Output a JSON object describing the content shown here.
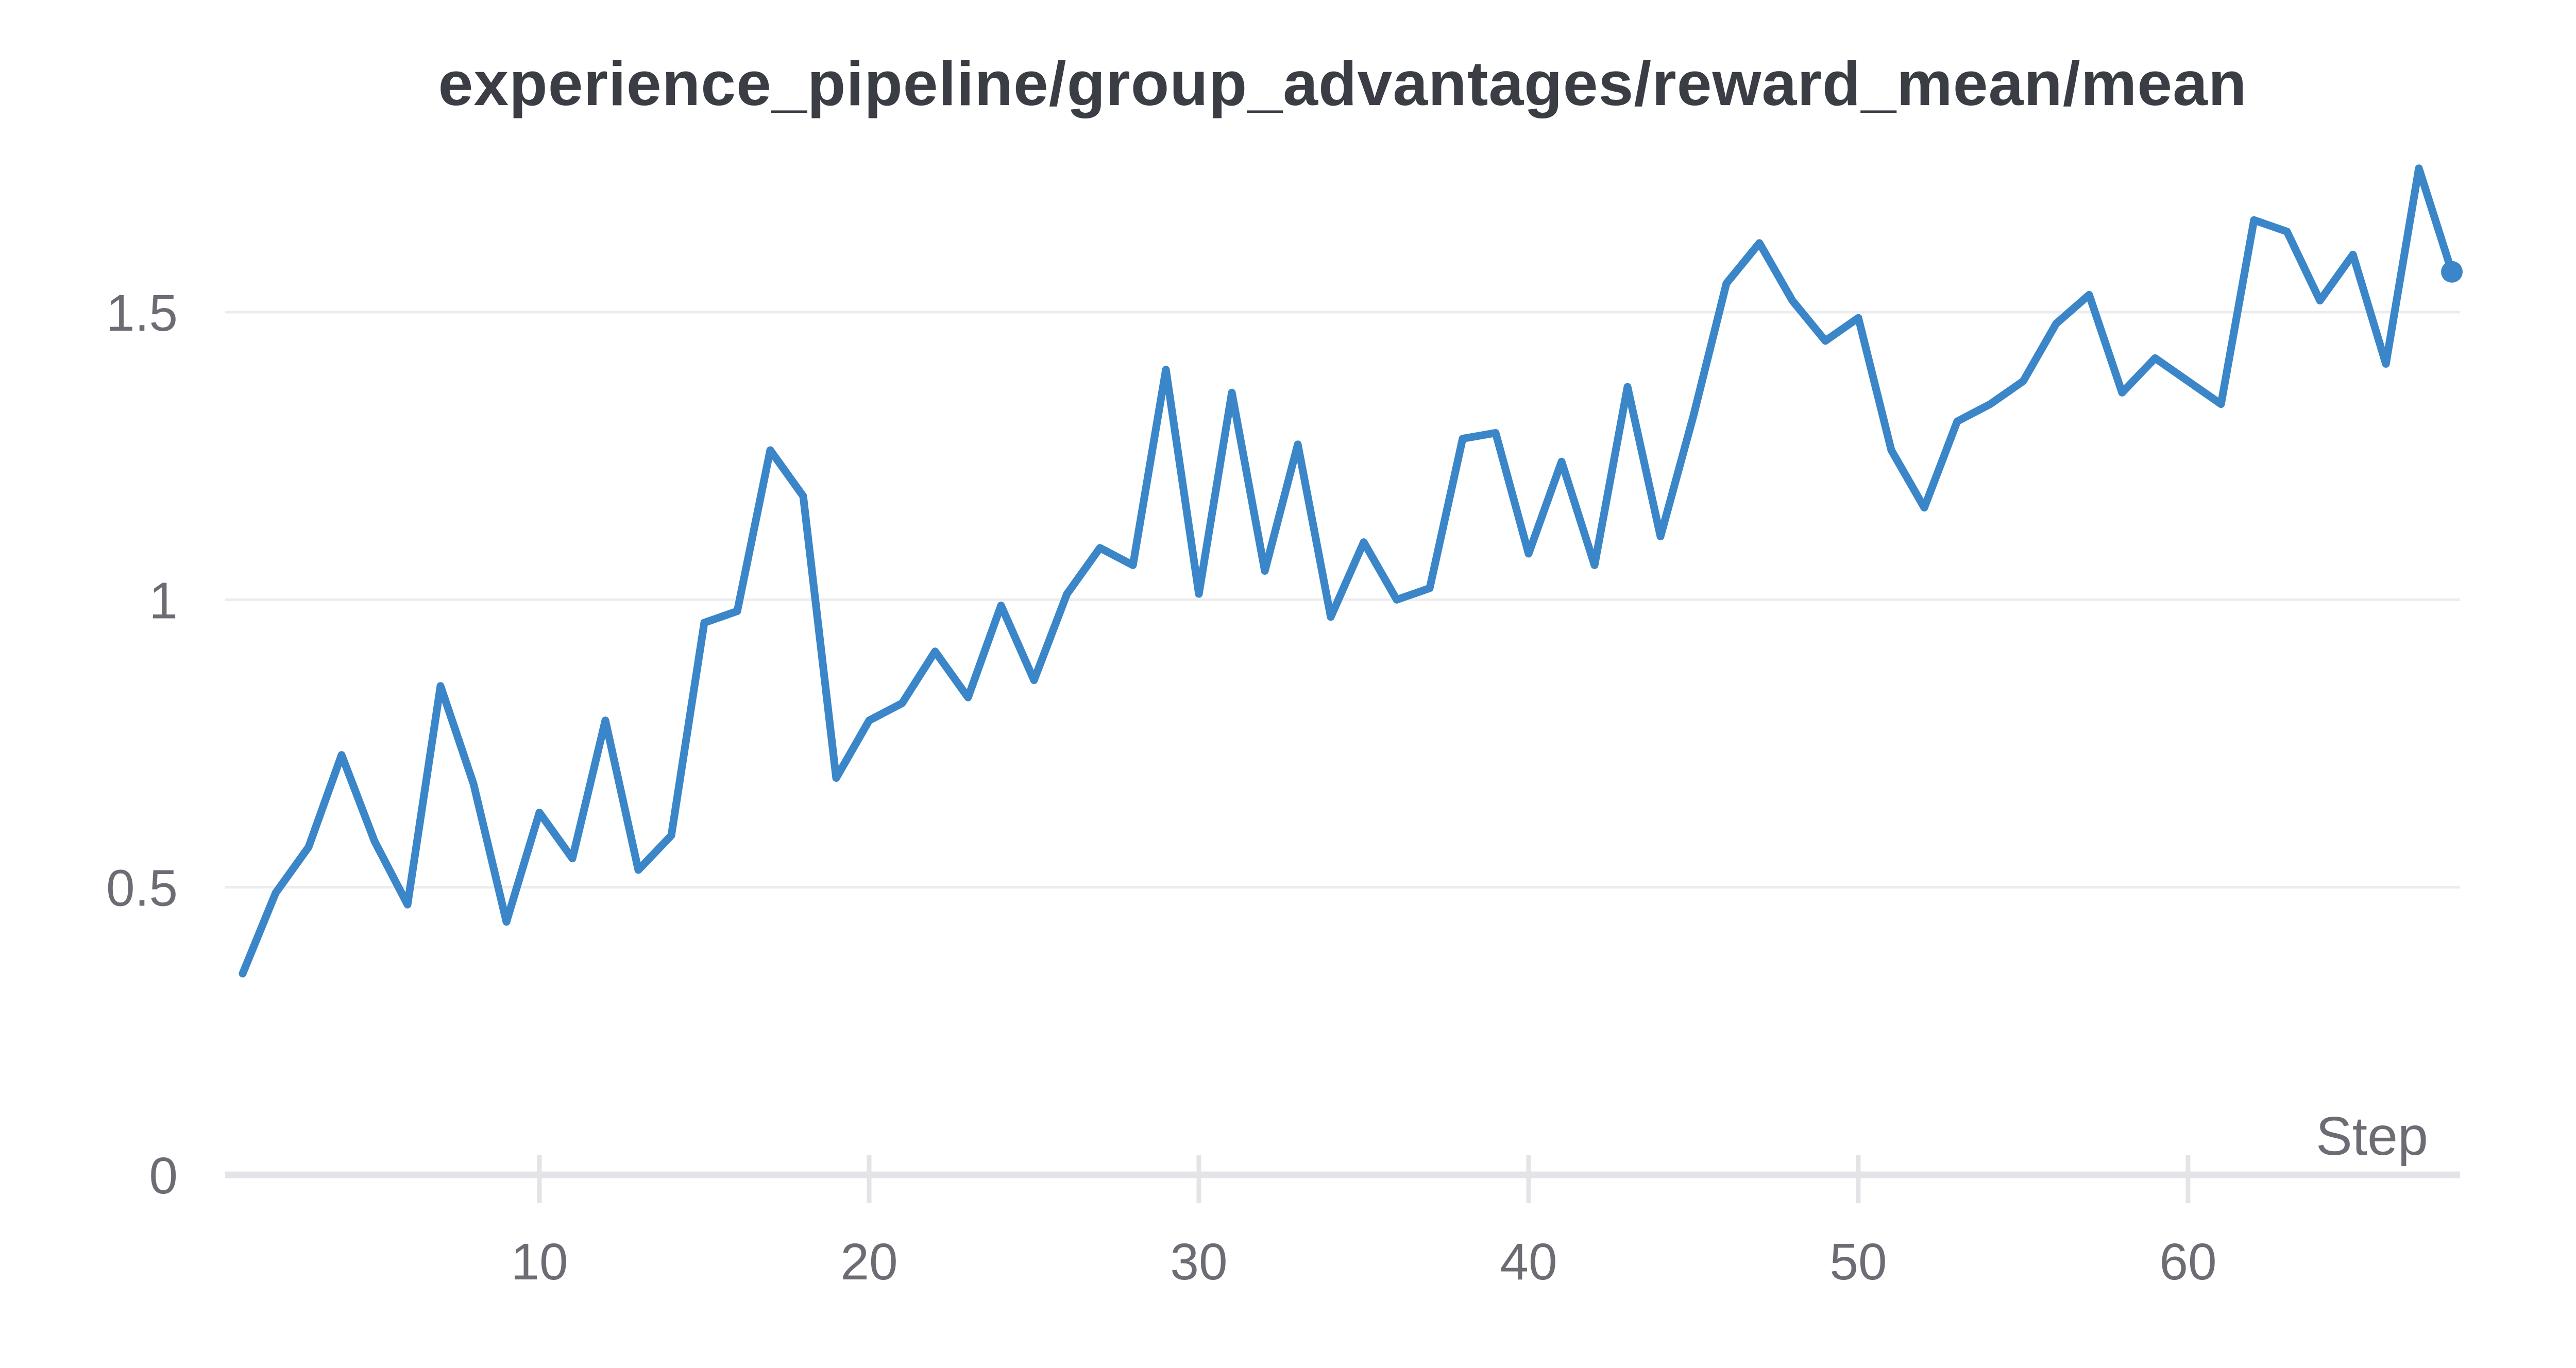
{
  "chart": {
    "title": "experience_pipeline/group_advantages/reward_mean/mean",
    "x_axis_label": "Step"
  },
  "chart_data": {
    "type": "line",
    "title": "experience_pipeline/group_advantages/reward_mean/mean",
    "xlabel": "Step",
    "ylabel": "",
    "legend": false,
    "grid": "horizontal-only",
    "xlim": [
      1,
      68
    ],
    "ylim": [
      0,
      1.85
    ],
    "xticks": [
      10,
      20,
      30,
      40,
      50,
      60
    ],
    "yticks": [
      "0",
      "0.5",
      "1",
      "1.5"
    ],
    "ytick_values": [
      0,
      0.5,
      1,
      1.5
    ],
    "x": [
      1,
      2,
      3,
      4,
      5,
      6,
      7,
      8,
      9,
      10,
      11,
      12,
      13,
      14,
      15,
      16,
      17,
      18,
      19,
      20,
      21,
      22,
      23,
      24,
      25,
      26,
      27,
      28,
      29,
      30,
      31,
      32,
      33,
      34,
      35,
      36,
      37,
      38,
      39,
      40,
      41,
      42,
      43,
      44,
      45,
      46,
      47,
      48,
      49,
      50,
      51,
      52,
      53,
      54,
      55,
      56,
      57,
      58,
      59,
      60,
      61,
      62,
      63,
      64,
      65,
      66,
      67,
      68
    ],
    "values": [
      0.35,
      0.49,
      0.57,
      0.73,
      0.58,
      0.47,
      0.85,
      0.68,
      0.44,
      0.63,
      0.55,
      0.79,
      0.53,
      0.59,
      0.96,
      0.98,
      1.26,
      1.18,
      0.69,
      0.79,
      0.82,
      0.91,
      0.83,
      0.99,
      0.86,
      1.01,
      1.09,
      1.06,
      1.4,
      1.01,
      1.36,
      1.05,
      1.27,
      0.97,
      1.1,
      1.0,
      1.02,
      1.28,
      1.29,
      1.08,
      1.24,
      1.06,
      1.37,
      1.11,
      1.32,
      1.55,
      1.62,
      1.52,
      1.45,
      1.49,
      1.26,
      1.16,
      1.31,
      1.34,
      1.38,
      1.48,
      1.53,
      1.36,
      1.42,
      1.38,
      1.34,
      1.66,
      1.64,
      1.52,
      1.6,
      1.41,
      1.75,
      1.57
    ],
    "last_point_marker": true
  },
  "colors": {
    "series": "#3a86c8",
    "title_text": "#3a3d44",
    "axis_labels": "#6c6c75",
    "gridline": "#ececee",
    "axis_line": "#e4e4e8",
    "background": "#ffffff"
  }
}
